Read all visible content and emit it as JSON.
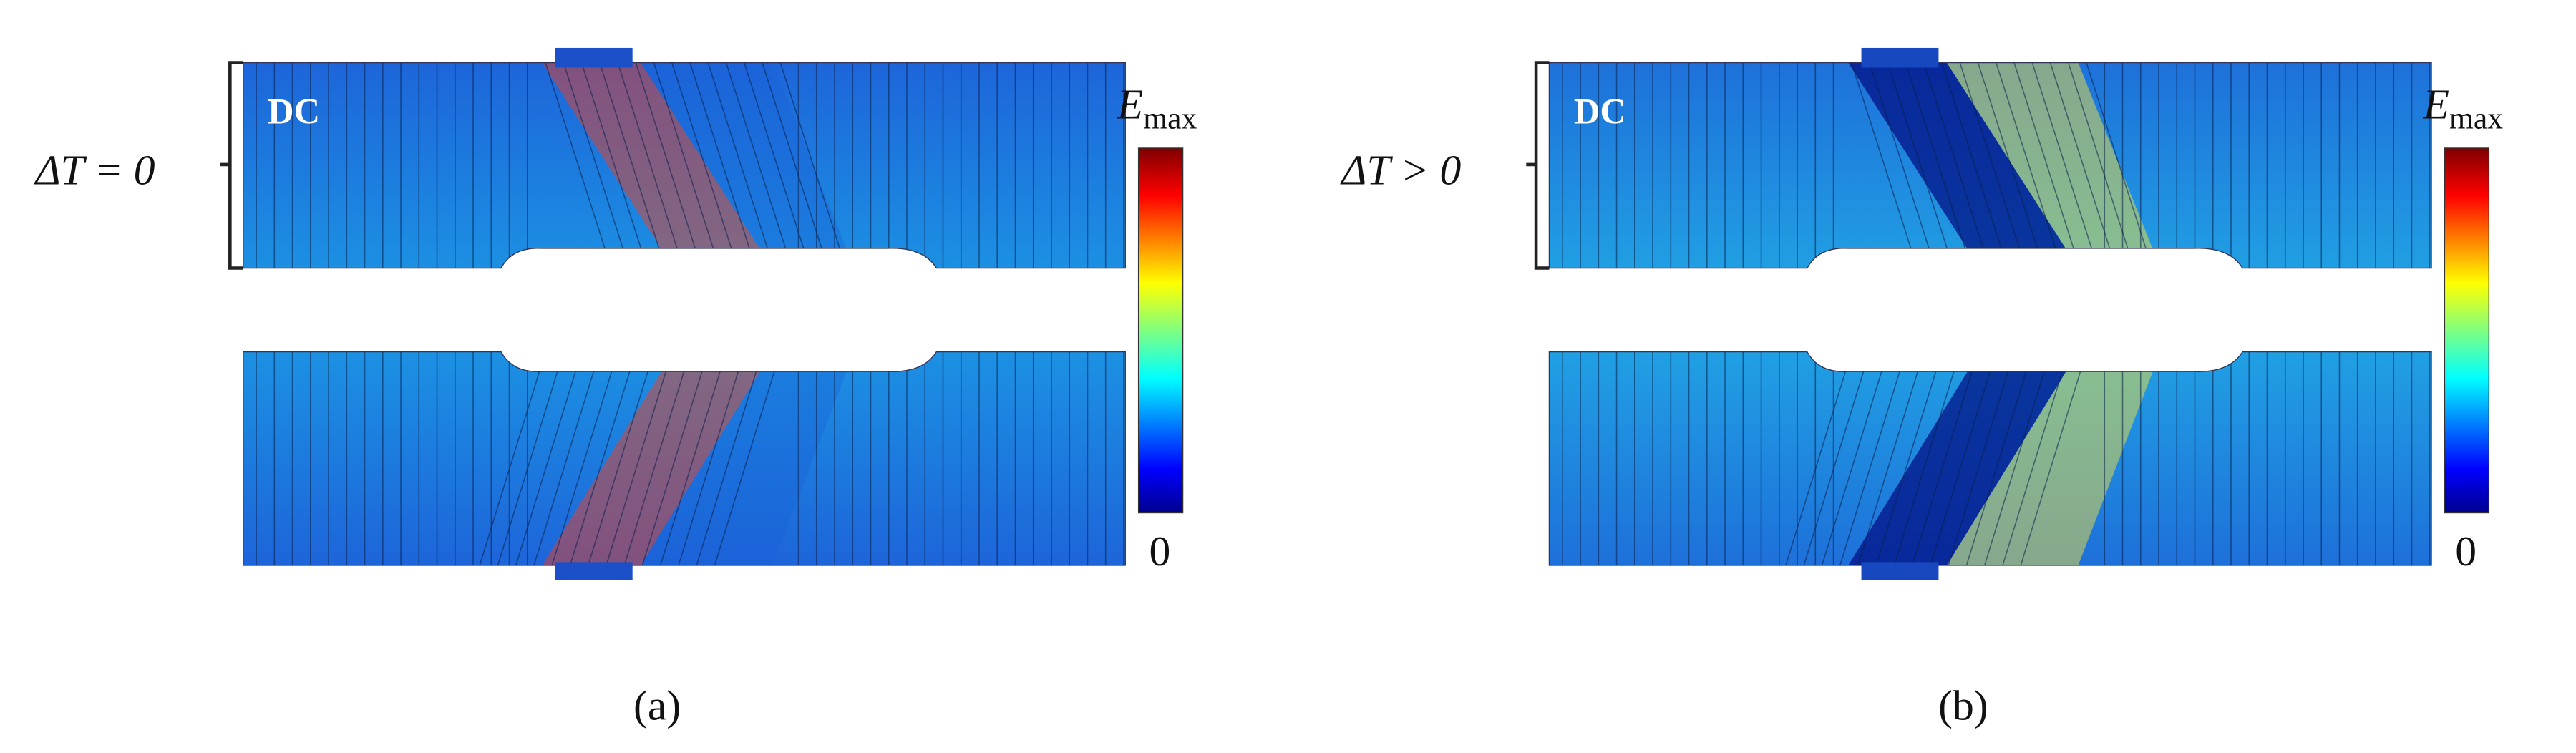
{
  "panels": [
    {
      "label": "(a)",
      "condition": "ΔT = 0",
      "region_label": "DC",
      "colorbar": {
        "max_symbol": "E",
        "max_subscript": "max",
        "min_label": "0"
      }
    },
    {
      "label": "(b)",
      "condition": "ΔT > 0",
      "region_label": "DC",
      "colorbar": {
        "max_symbol": "E",
        "max_subscript": "max",
        "min_label": "0"
      }
    }
  ]
}
